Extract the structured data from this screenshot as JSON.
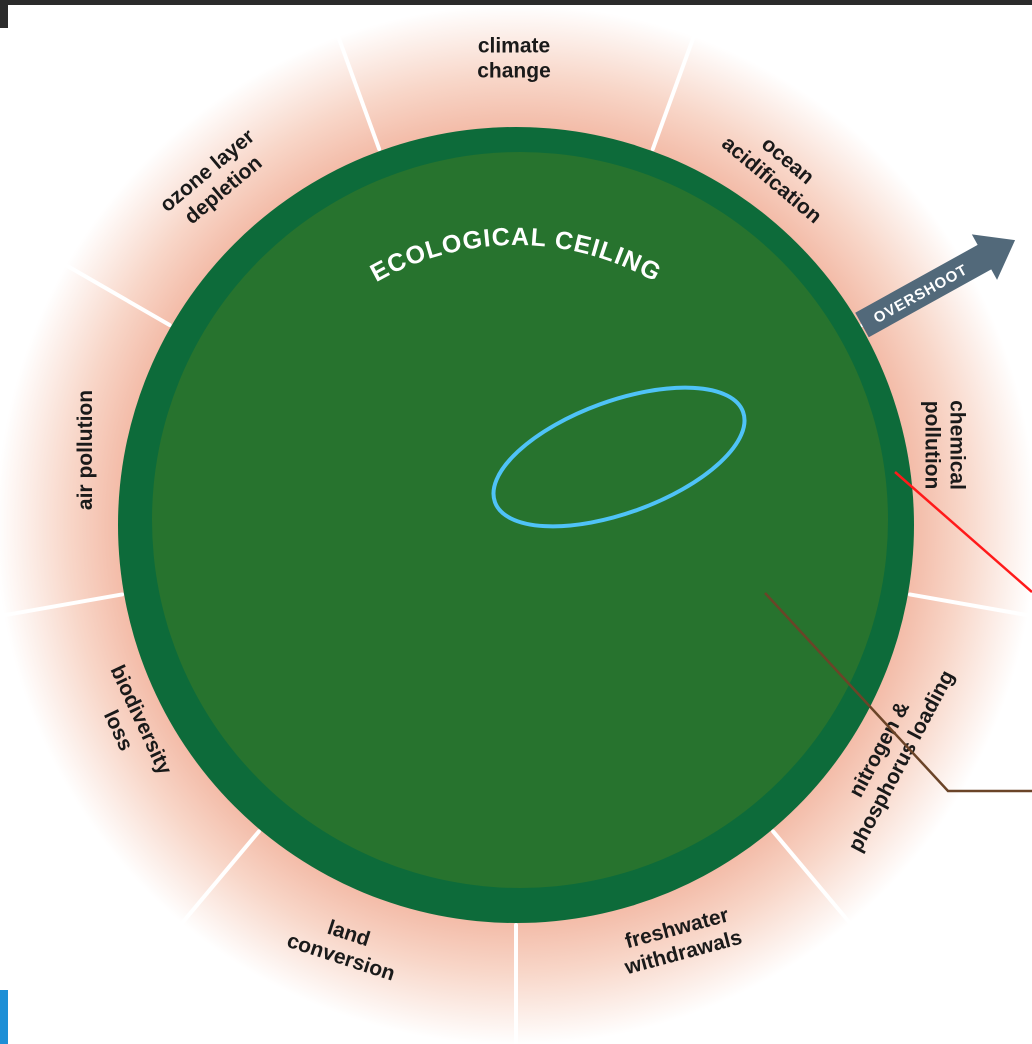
{
  "diagram": {
    "ceiling_label": "ECOLOGICAL CEILING",
    "overshoot_label": "OVERSHOOT",
    "segments": [
      {
        "id": "climate-change",
        "lines": [
          "climate",
          "change"
        ]
      },
      {
        "id": "ocean-acidification",
        "lines": [
          "ocean",
          "acidification"
        ]
      },
      {
        "id": "chemical-pollution",
        "lines": [
          "chemical",
          "pollution"
        ]
      },
      {
        "id": "nitrogen-phosphorus-loading",
        "lines": [
          "nitrogen &",
          "phosphorus loading"
        ]
      },
      {
        "id": "freshwater-withdrawals",
        "lines": [
          "freshwater",
          "withdrawals"
        ]
      },
      {
        "id": "land-conversion",
        "lines": [
          "land",
          "conversion"
        ]
      },
      {
        "id": "biodiversity-loss",
        "lines": [
          "biodiversity",
          "loss"
        ]
      },
      {
        "id": "air-pollution",
        "lines": [
          "air pollution"
        ]
      },
      {
        "id": "ozone-layer-depletion",
        "lines": [
          "ozone layer",
          "depletion"
        ]
      }
    ],
    "colors": {
      "inner": "#27732e",
      "ring": "#0d6b3a",
      "band_outer": "#fbe8e0",
      "band_inner": "#f2b5a0",
      "arrow": "#52697a",
      "ellipse": "#4fc3f7",
      "red_line": "#ff1a1a",
      "brown_line": "#6b4428"
    }
  }
}
